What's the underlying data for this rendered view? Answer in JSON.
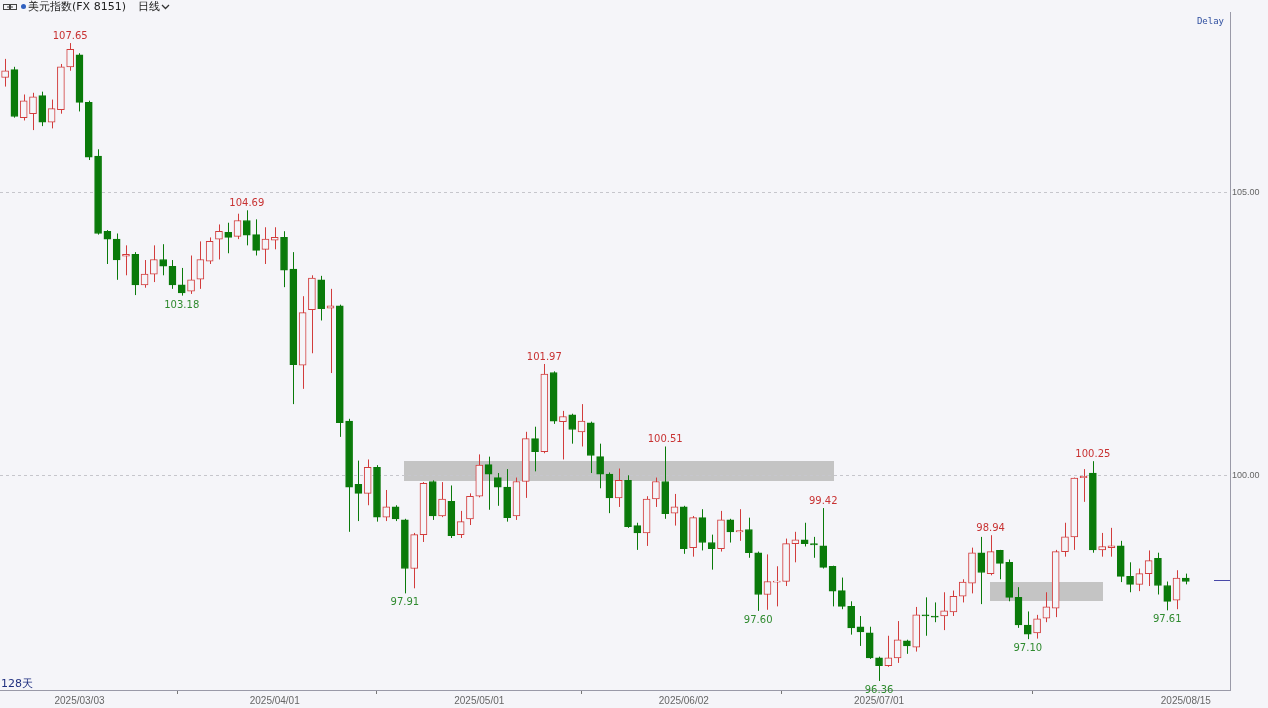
{
  "chart_data": {
    "type": "candlestick",
    "title": "美元指数(FX 8151)",
    "subtitle": "日线",
    "categories": [
      null,
      null,
      null,
      null,
      null,
      null,
      null,
      null,
      "2025/03/03",
      null,
      null,
      null,
      null,
      null,
      null,
      null,
      null,
      null,
      null,
      null,
      null,
      null,
      null,
      null,
      null,
      null,
      null,
      null,
      null,
      "2025/04/01",
      null,
      null,
      null,
      null,
      null,
      null,
      null,
      null,
      null,
      null,
      null,
      null,
      null,
      null,
      null,
      null,
      null,
      null,
      null,
      null,
      null,
      "2025/05/01",
      null,
      null,
      null,
      null,
      null,
      null,
      null,
      null,
      null,
      null,
      null,
      null,
      null,
      null,
      null,
      null,
      null,
      null,
      null,
      null,
      null,
      "2025/06/02",
      null,
      null,
      null,
      null,
      null,
      null,
      null,
      null,
      null,
      null,
      null,
      null,
      null,
      null,
      null,
      null,
      null,
      null,
      null,
      null,
      "2025/07/01",
      null,
      null,
      null,
      null,
      null,
      null,
      null,
      null,
      null,
      null,
      null,
      null,
      null,
      null,
      null,
      null,
      null,
      null,
      null,
      null,
      null,
      null,
      null,
      null,
      null,
      null,
      null,
      null,
      null,
      null,
      null,
      null,
      "2025/08/15"
    ],
    "ohlc": [
      [
        107.04,
        107.37,
        106.88,
        107.16
      ],
      [
        107.18,
        107.23,
        106.33,
        106.35
      ],
      [
        106.33,
        106.74,
        106.28,
        106.63
      ],
      [
        106.4,
        106.77,
        106.11,
        106.7
      ],
      [
        106.72,
        106.79,
        106.18,
        106.25
      ],
      [
        106.25,
        106.65,
        106.14,
        106.49
      ],
      [
        106.47,
        107.28,
        106.4,
        107.23
      ],
      [
        107.23,
        107.65,
        107.16,
        107.54
      ],
      [
        107.44,
        107.47,
        106.44,
        106.6
      ],
      [
        106.6,
        106.63,
        105.58,
        105.63
      ],
      [
        105.65,
        105.77,
        104.26,
        104.28
      ],
      [
        104.32,
        104.34,
        103.74,
        104.18
      ],
      [
        104.18,
        104.28,
        103.46,
        103.81
      ],
      [
        103.88,
        104.07,
        103.54,
        103.91
      ],
      [
        103.91,
        103.95,
        103.19,
        103.37
      ],
      [
        103.37,
        103.81,
        103.32,
        103.56
      ],
      [
        103.56,
        104.07,
        103.42,
        103.82
      ],
      [
        103.82,
        104.09,
        103.54,
        103.7
      ],
      [
        103.7,
        103.81,
        103.3,
        103.37
      ],
      [
        103.37,
        103.67,
        103.18,
        103.23
      ],
      [
        103.26,
        103.89,
        103.21,
        103.46
      ],
      [
        103.47,
        104.14,
        103.3,
        103.82
      ],
      [
        103.79,
        104.21,
        103.74,
        104.14
      ],
      [
        104.18,
        104.44,
        103.82,
        104.32
      ],
      [
        104.3,
        104.47,
        103.93,
        104.21
      ],
      [
        104.23,
        104.63,
        104.18,
        104.51
      ],
      [
        104.51,
        104.69,
        104.07,
        104.25
      ],
      [
        104.26,
        104.53,
        103.89,
        103.98
      ],
      [
        104.0,
        104.39,
        103.74,
        104.18
      ],
      [
        104.16,
        104.39,
        104.0,
        104.21
      ],
      [
        104.21,
        104.32,
        103.33,
        103.63
      ],
      [
        103.65,
        103.95,
        101.26,
        101.96
      ],
      [
        101.95,
        103.17,
        101.53,
        102.88
      ],
      [
        102.93,
        103.54,
        102.16,
        103.49
      ],
      [
        103.46,
        103.53,
        102.74,
        102.95
      ],
      [
        102.96,
        103.3,
        101.81,
        103.0
      ],
      [
        103.0,
        103.02,
        100.68,
        100.93
      ],
      [
        100.96,
        101.0,
        99.0,
        99.79
      ],
      [
        99.84,
        100.26,
        99.19,
        99.68
      ],
      [
        99.68,
        100.28,
        99.47,
        100.14
      ],
      [
        100.14,
        100.18,
        99.18,
        99.26
      ],
      [
        99.26,
        99.74,
        99.19,
        99.44
      ],
      [
        99.44,
        99.47,
        99.19,
        99.23
      ],
      [
        99.21,
        99.23,
        97.91,
        98.35
      ],
      [
        98.35,
        98.98,
        98.0,
        98.95
      ],
      [
        98.95,
        99.88,
        98.82,
        99.86
      ],
      [
        99.89,
        99.91,
        99.21,
        99.28
      ],
      [
        99.28,
        99.88,
        99.26,
        99.58
      ],
      [
        99.54,
        99.82,
        98.89,
        98.93
      ],
      [
        98.95,
        99.37,
        98.89,
        99.18
      ],
      [
        99.23,
        99.68,
        99.12,
        99.63
      ],
      [
        99.63,
        100.37,
        99.61,
        100.18
      ],
      [
        100.19,
        100.33,
        99.39,
        100.02
      ],
      [
        99.96,
        100.04,
        99.46,
        99.79
      ],
      [
        99.79,
        100.11,
        99.18,
        99.25
      ],
      [
        99.28,
        99.96,
        99.21,
        99.89
      ],
      [
        99.89,
        100.77,
        99.6,
        100.65
      ],
      [
        100.65,
        100.86,
        100.07,
        100.42
      ],
      [
        100.42,
        101.97,
        100.39,
        101.79
      ],
      [
        101.82,
        101.84,
        100.91,
        100.96
      ],
      [
        100.95,
        101.14,
        100.28,
        101.04
      ],
      [
        101.07,
        101.09,
        100.56,
        100.81
      ],
      [
        100.77,
        101.26,
        100.51,
        100.96
      ],
      [
        100.93,
        100.95,
        100.04,
        100.35
      ],
      [
        100.33,
        100.56,
        99.77,
        100.02
      ],
      [
        100.02,
        100.05,
        99.33,
        99.6
      ],
      [
        99.6,
        100.12,
        99.44,
        99.91
      ],
      [
        99.91,
        100.0,
        99.07,
        99.09
      ],
      [
        99.11,
        99.16,
        98.68,
        98.98
      ],
      [
        98.98,
        99.63,
        98.75,
        99.58
      ],
      [
        99.58,
        99.96,
        99.44,
        99.89
      ],
      [
        99.89,
        100.51,
        99.23,
        99.32
      ],
      [
        99.33,
        99.67,
        99.11,
        99.44
      ],
      [
        99.44,
        99.46,
        98.61,
        98.7
      ],
      [
        98.72,
        99.28,
        98.56,
        99.25
      ],
      [
        99.25,
        99.4,
        98.67,
        98.81
      ],
      [
        98.81,
        98.95,
        98.33,
        98.7
      ],
      [
        98.7,
        99.37,
        98.65,
        99.21
      ],
      [
        99.21,
        99.23,
        98.81,
        99.0
      ],
      [
        99.0,
        99.4,
        98.84,
        99.02
      ],
      [
        99.04,
        99.25,
        98.54,
        98.63
      ],
      [
        98.63,
        98.65,
        97.6,
        97.89
      ],
      [
        97.89,
        98.6,
        97.62,
        98.12
      ],
      [
        98.11,
        98.39,
        97.68,
        98.12
      ],
      [
        98.12,
        98.88,
        98.04,
        98.79
      ],
      [
        98.79,
        99.0,
        98.46,
        98.86
      ],
      [
        98.86,
        99.16,
        98.74,
        98.79
      ],
      [
        98.79,
        98.91,
        98.54,
        98.77
      ],
      [
        98.75,
        99.42,
        98.35,
        98.37
      ],
      [
        98.39,
        98.4,
        97.68,
        97.95
      ],
      [
        97.96,
        98.19,
        97.63,
        97.68
      ],
      [
        97.68,
        97.77,
        97.18,
        97.3
      ],
      [
        97.32,
        97.51,
        96.98,
        97.23
      ],
      [
        97.21,
        97.32,
        96.75,
        96.77
      ],
      [
        96.77,
        96.79,
        96.36,
        96.63
      ],
      [
        96.63,
        97.16,
        96.61,
        96.77
      ],
      [
        96.77,
        97.42,
        96.68,
        97.09
      ],
      [
        97.07,
        97.09,
        96.84,
        96.98
      ],
      [
        96.96,
        97.67,
        96.88,
        97.53
      ],
      [
        97.53,
        97.84,
        97.16,
        97.51
      ],
      [
        97.51,
        97.75,
        97.4,
        97.49
      ],
      [
        97.51,
        97.93,
        97.26,
        97.6
      ],
      [
        97.58,
        97.96,
        97.51,
        97.86
      ],
      [
        97.86,
        98.16,
        97.75,
        98.11
      ],
      [
        98.09,
        98.72,
        97.91,
        98.63
      ],
      [
        98.63,
        98.91,
        97.72,
        98.28
      ],
      [
        98.26,
        98.94,
        98.23,
        98.65
      ],
      [
        98.67,
        98.68,
        98.16,
        98.44
      ],
      [
        98.46,
        98.51,
        97.77,
        97.84
      ],
      [
        97.84,
        98.02,
        97.3,
        97.35
      ],
      [
        97.35,
        97.59,
        97.1,
        97.19
      ],
      [
        97.21,
        97.53,
        97.11,
        97.46
      ],
      [
        97.47,
        97.93,
        97.4,
        97.67
      ],
      [
        97.65,
        98.68,
        97.49,
        98.65
      ],
      [
        98.65,
        99.16,
        98.56,
        98.91
      ],
      [
        98.91,
        99.96,
        98.68,
        99.95
      ],
      [
        99.96,
        100.11,
        99.53,
        99.98
      ],
      [
        100.04,
        100.25,
        98.63,
        98.68
      ],
      [
        98.68,
        98.98,
        98.56,
        98.74
      ],
      [
        98.72,
        99.07,
        98.56,
        98.75
      ],
      [
        98.75,
        98.84,
        98.11,
        98.21
      ],
      [
        98.21,
        98.46,
        97.93,
        98.07
      ],
      [
        98.07,
        98.35,
        97.95,
        98.26
      ],
      [
        98.26,
        98.67,
        98.04,
        98.49
      ],
      [
        98.53,
        98.63,
        97.89,
        98.05
      ],
      [
        98.05,
        98.12,
        97.61,
        97.77
      ],
      [
        97.79,
        98.32,
        97.63,
        98.18
      ],
      [
        98.18,
        98.26,
        98.07,
        98.12
      ]
    ],
    "ylim": [
      96.2,
      108.2
    ],
    "yticks": [
      {
        "value": 100,
        "label": "100.00"
      },
      {
        "value": 105,
        "label": "105.00"
      }
    ],
    "grid": "y",
    "annotations": [
      {
        "text": "107.65",
        "y": 107.65
      },
      {
        "text": "104.69",
        "y": 104.69
      },
      {
        "text": "103.18",
        "y": 103.18
      },
      {
        "text": "101.97",
        "y": 101.97
      },
      {
        "text": "97.91",
        "y": 97.91
      },
      {
        "text": "100.51",
        "y": 100.51
      },
      {
        "text": "99.42",
        "y": 99.42
      },
      {
        "text": "97.60",
        "y": 97.6
      },
      {
        "text": "96.36",
        "y": 96.36
      },
      {
        "text": "98.94",
        "y": 98.94
      },
      {
        "text": "97.10",
        "y": 97.1
      },
      {
        "text": "100.25",
        "y": 100.25
      },
      {
        "text": "97.61",
        "y": 97.61
      },
      "Delay",
      "128天"
    ]
  }
}
